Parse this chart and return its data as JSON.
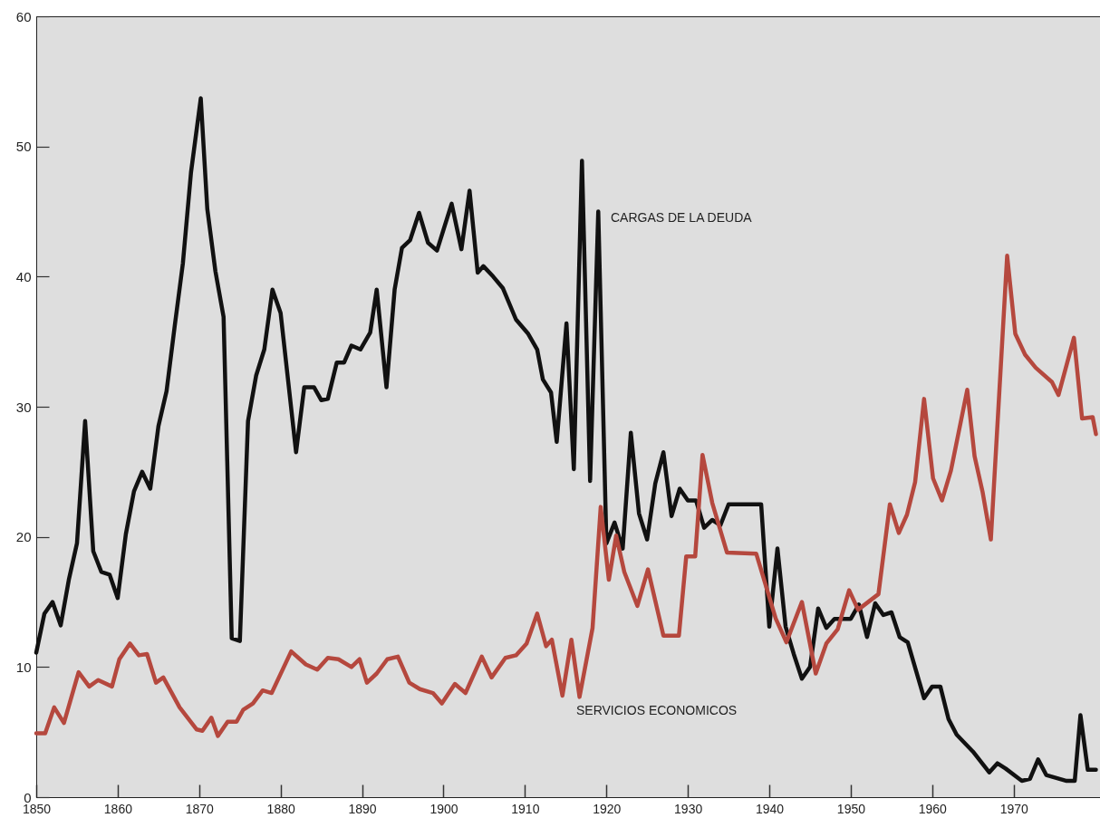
{
  "chart_data": {
    "type": "line",
    "xlim": [
      1850,
      1980.6
    ],
    "ylim": [
      0,
      60
    ],
    "xticks": [
      1850,
      1860,
      1870,
      1880,
      1890,
      1900,
      1910,
      1920,
      1930,
      1940,
      1950,
      1960,
      1970
    ],
    "yticks": [
      0,
      10,
      20,
      30,
      40,
      50,
      60
    ],
    "grid": false,
    "line_style": "solid",
    "marker": "none",
    "series": [
      {
        "name": "CARGAS DE LA DEUDA",
        "color": "#111111",
        "x": [
          1850,
          1851,
          1852,
          1853,
          1854,
          1855,
          1856,
          1857,
          1858,
          1859,
          1860,
          1861,
          1862,
          1863,
          1864,
          1865,
          1866,
          1867,
          1868,
          1869,
          1870.2,
          1871,
          1872,
          1873,
          1874,
          1875,
          1876,
          1877,
          1878,
          1879,
          1880,
          1881.9,
          1882.9,
          1884.1,
          1885,
          1885.8,
          1886.9,
          1887.8,
          1888.7,
          1889.8,
          1891,
          1891.8,
          1893,
          1894,
          1894.9,
          1895.9,
          1897,
          1898.1,
          1899.2,
          1901,
          1902.2,
          1903.2,
          1904.2,
          1904.9,
          1906.1,
          1907.3,
          1908.9,
          1910.4,
          1911.5,
          1912.2,
          1913.2,
          1913.9,
          1915.1,
          1916,
          1917,
          1918,
          1919,
          1920,
          1921,
          1922,
          1923,
          1924,
          1925,
          1926,
          1927,
          1928,
          1929,
          1930,
          1931,
          1932,
          1933,
          1934,
          1935,
          1939,
          1940,
          1941,
          1942,
          1943,
          1944,
          1945,
          1946,
          1947,
          1948,
          1950,
          1951,
          1952,
          1953,
          1954,
          1955,
          1956,
          1957,
          1959,
          1960,
          1961,
          1962,
          1963,
          1965,
          1967,
          1968,
          1969,
          1971,
          1972,
          1973,
          1974,
          1976.5,
          1977.5,
          1978.2,
          1979.1,
          1980.1
        ],
        "values": [
          11.1,
          14.1,
          15,
          13.2,
          16.7,
          19.5,
          28.9,
          18.9,
          17.3,
          17.1,
          15.3,
          20.2,
          23.5,
          25,
          23.7,
          28.5,
          31.2,
          36.2,
          41,
          48,
          53.7,
          45.2,
          40.4,
          36.9,
          12.2,
          12,
          28.9,
          32.4,
          34.4,
          39,
          37.2,
          26.5,
          31.5,
          31.5,
          30.5,
          30.6,
          33.4,
          33.4,
          34.7,
          34.4,
          35.7,
          39,
          31.5,
          39,
          42.2,
          42.8,
          44.9,
          42.6,
          42,
          45.6,
          42.1,
          46.6,
          40.3,
          40.8,
          40,
          39.1,
          36.7,
          35.6,
          34.4,
          32.1,
          31.1,
          27.3,
          36.4,
          25.2,
          48.9,
          24.3,
          45,
          19.5,
          21.1,
          19.1,
          28,
          21.8,
          19.8,
          24.1,
          26.5,
          21.6,
          23.7,
          22.8,
          22.8,
          20.7,
          21.3,
          20.9,
          22.5,
          22.5,
          13.1,
          19.1,
          13.1,
          11,
          9.1,
          10,
          14.5,
          13,
          13.7,
          13.7,
          14.8,
          12.3,
          14.9,
          14,
          14.2,
          12.3,
          11.9,
          7.6,
          8.5,
          8.5,
          6,
          4.8,
          3.5,
          1.9,
          2.6,
          2.2,
          1.25,
          1.4,
          2.9,
          1.7,
          1.25,
          1.25,
          6.3,
          2.1,
          2.1
        ]
      },
      {
        "name": "SERVICIOS ECONOMICOS",
        "color": "#b5483e",
        "x": [
          1850,
          1851.1,
          1852.2,
          1853.4,
          1855.2,
          1856.5,
          1857.6,
          1859.3,
          1860.2,
          1861.5,
          1862.6,
          1863.6,
          1864.7,
          1865.6,
          1867.6,
          1869.7,
          1870.4,
          1871.5,
          1872.3,
          1873.5,
          1874.6,
          1875.4,
          1876.6,
          1877.8,
          1878.9,
          1881.3,
          1883.1,
          1884.5,
          1885.8,
          1887.1,
          1888.7,
          1889.7,
          1890.6,
          1891.8,
          1893.1,
          1894.4,
          1895.8,
          1897.1,
          1898.7,
          1899.8,
          1901.4,
          1902.7,
          1904.7,
          1905.9,
          1907.6,
          1908.9,
          1910.2,
          1911.5,
          1912.6,
          1913.3,
          1914.6,
          1915.7,
          1916.7,
          1918.3,
          1919.3,
          1920.3,
          1921.2,
          1922.2,
          1923.8,
          1925.1,
          1927,
          1928.9,
          1929.8,
          1930.9,
          1931.8,
          1933,
          1934.8,
          1938.4,
          1940.8,
          1942.1,
          1944,
          1945.7,
          1947,
          1948.4,
          1949.8,
          1950.9,
          1953.4,
          1954.8,
          1955.9,
          1956.9,
          1957.9,
          1959,
          1960.1,
          1961.2,
          1962.3,
          1964.3,
          1965.2,
          1966.2,
          1967.2,
          1968.1,
          1969.2,
          1970.2,
          1971.4,
          1972.7,
          1974.7,
          1975.5,
          1977.4,
          1978.4,
          1979.7,
          1980.1
        ],
        "values": [
          4.9,
          4.9,
          6.9,
          5.7,
          9.6,
          8.5,
          9,
          8.5,
          10.6,
          11.8,
          10.9,
          11,
          8.8,
          9.2,
          6.9,
          5.2,
          5.1,
          6.1,
          4.7,
          5.8,
          5.8,
          6.7,
          7.2,
          8.2,
          8,
          11.2,
          10.2,
          9.8,
          10.7,
          10.6,
          10,
          10.6,
          8.8,
          9.5,
          10.6,
          10.8,
          8.8,
          8.3,
          8,
          7.2,
          8.7,
          8,
          10.8,
          9.2,
          10.7,
          10.9,
          11.8,
          14.1,
          11.6,
          12.1,
          7.8,
          12.1,
          7.7,
          13,
          22.3,
          16.7,
          20.1,
          17.3,
          14.7,
          17.5,
          12.4,
          12.4,
          18.5,
          18.5,
          26.3,
          22.6,
          18.8,
          18.7,
          13.7,
          11.9,
          15,
          9.5,
          11.8,
          12.9,
          15.9,
          14.4,
          15.6,
          22.5,
          20.3,
          21.7,
          24.2,
          30.6,
          24.5,
          22.8,
          25.1,
          31.3,
          26.2,
          23.4,
          19.8,
          29.6,
          41.6,
          35.6,
          34,
          33,
          31.9,
          30.9,
          35.3,
          29.1,
          29.2,
          27.9
        ]
      }
    ]
  }
}
